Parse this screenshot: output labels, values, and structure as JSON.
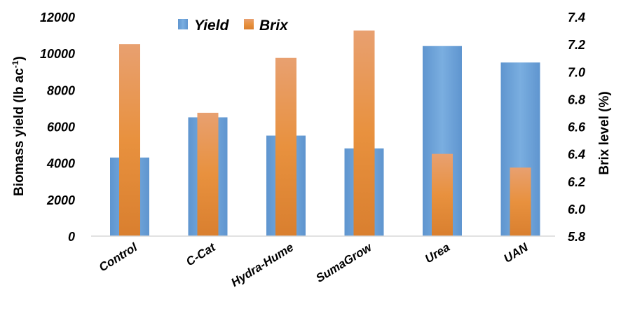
{
  "chart_data": {
    "type": "bar",
    "categories": [
      "Control",
      "C-Cat",
      "Hydra-Hume",
      "SumaGrow",
      "Urea",
      "UAN"
    ],
    "series": [
      {
        "name": "Yield",
        "axis": "left",
        "color": "#6fa3d8",
        "values": [
          4300,
          6500,
          5500,
          4800,
          10400,
          9500
        ]
      },
      {
        "name": "Brix",
        "axis": "right",
        "color": "#e8873a",
        "values": [
          7.2,
          6.7,
          7.1,
          7.3,
          6.4,
          6.3
        ]
      }
    ],
    "ylabel": "Biomass yield (lb ac",
    "ylabel_sup": "-1",
    "ylabel_end": ")",
    "y2label": "Brix level (%)",
    "ylim": [
      0,
      12000
    ],
    "y2lim": [
      5.8,
      7.4
    ],
    "yticks": [
      "0",
      "2000",
      "4000",
      "6000",
      "8000",
      "10000",
      "12000"
    ],
    "y2ticks": [
      "5.8",
      "6.0",
      "6.2",
      "6.4",
      "6.6",
      "6.8",
      "7.0",
      "7.2",
      "7.4"
    ],
    "legend": "top-center",
    "grid": false
  }
}
